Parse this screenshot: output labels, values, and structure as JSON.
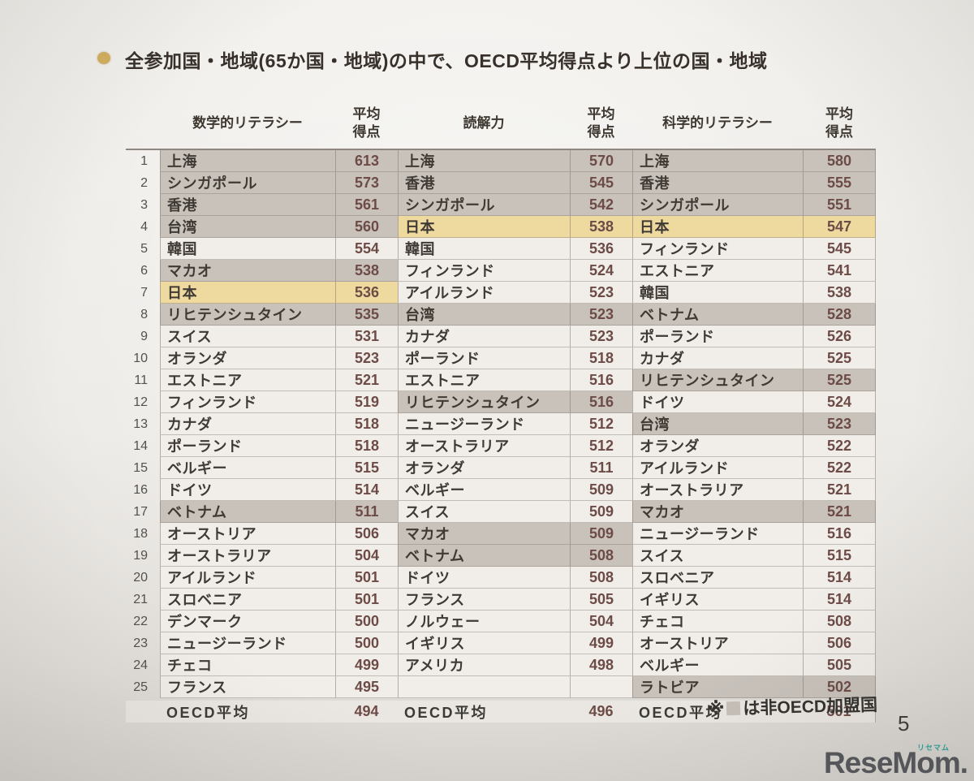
{
  "title": "全参加国・地域(65か国・地域)の中で、OECD平均得点より上位の国・地域",
  "page_number": "5",
  "note": {
    "prefix": "※",
    "suffix": "は非OECD加盟国"
  },
  "watermark": {
    "text": "ReseMom.",
    "ruby": "リセマム"
  },
  "colors": {
    "non_oecd_row": "#c8c2bb",
    "japan_row": "#eeda9f",
    "default_row": "#f1eeea",
    "oecd_avg_row": "#eae7e2",
    "score_text": "#6d4b46",
    "title_bullet": "#d2ae5c",
    "watermark_accent": "#2fa39a"
  },
  "chart_data": {
    "type": "table",
    "title": "全参加国・地域(65か国・地域)の中で、OECD平均得点より上位の国・地域",
    "columns": [
      "数学的リテラシー",
      "平均得点",
      "読解力",
      "平均得点",
      "科学的リテラシー",
      "平均得点"
    ],
    "legend_note": "※■は非OECD加盟国",
    "highlight_legend": {
      "non_oecd": "灰色行=非OECD加盟国",
      "japan": "黄色行=日本"
    },
    "rows": [
      {
        "rank": 1,
        "math": {
          "name": "上海",
          "score": 613,
          "hl": "non_oecd"
        },
        "reading": {
          "name": "上海",
          "score": 570,
          "hl": "non_oecd"
        },
        "science": {
          "name": "上海",
          "score": 580,
          "hl": "non_oecd"
        }
      },
      {
        "rank": 2,
        "math": {
          "name": "シンガポール",
          "score": 573,
          "hl": "non_oecd"
        },
        "reading": {
          "name": "香港",
          "score": 545,
          "hl": "non_oecd"
        },
        "science": {
          "name": "香港",
          "score": 555,
          "hl": "non_oecd"
        }
      },
      {
        "rank": 3,
        "math": {
          "name": "香港",
          "score": 561,
          "hl": "non_oecd"
        },
        "reading": {
          "name": "シンガポール",
          "score": 542,
          "hl": "non_oecd"
        },
        "science": {
          "name": "シンガポール",
          "score": 551,
          "hl": "non_oecd"
        }
      },
      {
        "rank": 4,
        "math": {
          "name": "台湾",
          "score": 560,
          "hl": "non_oecd"
        },
        "reading": {
          "name": "日本",
          "score": 538,
          "hl": "japan"
        },
        "science": {
          "name": "日本",
          "score": 547,
          "hl": "japan"
        }
      },
      {
        "rank": 5,
        "math": {
          "name": "韓国",
          "score": 554,
          "hl": null
        },
        "reading": {
          "name": "韓国",
          "score": 536,
          "hl": null
        },
        "science": {
          "name": "フィンランド",
          "score": 545,
          "hl": null
        }
      },
      {
        "rank": 6,
        "math": {
          "name": "マカオ",
          "score": 538,
          "hl": "non_oecd"
        },
        "reading": {
          "name": "フィンランド",
          "score": 524,
          "hl": null
        },
        "science": {
          "name": "エストニア",
          "score": 541,
          "hl": null
        }
      },
      {
        "rank": 7,
        "math": {
          "name": "日本",
          "score": 536,
          "hl": "japan"
        },
        "reading": {
          "name": "アイルランド",
          "score": 523,
          "hl": null
        },
        "science": {
          "name": "韓国",
          "score": 538,
          "hl": null
        }
      },
      {
        "rank": 8,
        "math": {
          "name": "リヒテンシュタイン",
          "score": 535,
          "hl": "non_oecd"
        },
        "reading": {
          "name": "台湾",
          "score": 523,
          "hl": "non_oecd"
        },
        "science": {
          "name": "ベトナム",
          "score": 528,
          "hl": "non_oecd"
        }
      },
      {
        "rank": 9,
        "math": {
          "name": "スイス",
          "score": 531,
          "hl": null
        },
        "reading": {
          "name": "カナダ",
          "score": 523,
          "hl": null
        },
        "science": {
          "name": "ポーランド",
          "score": 526,
          "hl": null
        }
      },
      {
        "rank": 10,
        "math": {
          "name": "オランダ",
          "score": 523,
          "hl": null
        },
        "reading": {
          "name": "ポーランド",
          "score": 518,
          "hl": null
        },
        "science": {
          "name": "カナダ",
          "score": 525,
          "hl": null
        }
      },
      {
        "rank": 11,
        "math": {
          "name": "エストニア",
          "score": 521,
          "hl": null
        },
        "reading": {
          "name": "エストニア",
          "score": 516,
          "hl": null
        },
        "science": {
          "name": "リヒテンシュタイン",
          "score": 525,
          "hl": "non_oecd"
        }
      },
      {
        "rank": 12,
        "math": {
          "name": "フィンランド",
          "score": 519,
          "hl": null
        },
        "reading": {
          "name": "リヒテンシュタイン",
          "score": 516,
          "hl": "non_oecd"
        },
        "science": {
          "name": "ドイツ",
          "score": 524,
          "hl": null
        }
      },
      {
        "rank": 13,
        "math": {
          "name": "カナダ",
          "score": 518,
          "hl": null
        },
        "reading": {
          "name": "ニュージーランド",
          "score": 512,
          "hl": null
        },
        "science": {
          "name": "台湾",
          "score": 523,
          "hl": "non_oecd"
        }
      },
      {
        "rank": 14,
        "math": {
          "name": "ポーランド",
          "score": 518,
          "hl": null
        },
        "reading": {
          "name": "オーストラリア",
          "score": 512,
          "hl": null
        },
        "science": {
          "name": "オランダ",
          "score": 522,
          "hl": null
        }
      },
      {
        "rank": 15,
        "math": {
          "name": "ベルギー",
          "score": 515,
          "hl": null
        },
        "reading": {
          "name": "オランダ",
          "score": 511,
          "hl": null
        },
        "science": {
          "name": "アイルランド",
          "score": 522,
          "hl": null
        }
      },
      {
        "rank": 16,
        "math": {
          "name": "ドイツ",
          "score": 514,
          "hl": null
        },
        "reading": {
          "name": "ベルギー",
          "score": 509,
          "hl": null
        },
        "science": {
          "name": "オーストラリア",
          "score": 521,
          "hl": null
        }
      },
      {
        "rank": 17,
        "math": {
          "name": "ベトナム",
          "score": 511,
          "hl": "non_oecd"
        },
        "reading": {
          "name": "スイス",
          "score": 509,
          "hl": null
        },
        "science": {
          "name": "マカオ",
          "score": 521,
          "hl": "non_oecd"
        }
      },
      {
        "rank": 18,
        "math": {
          "name": "オーストリア",
          "score": 506,
          "hl": null
        },
        "reading": {
          "name": "マカオ",
          "score": 509,
          "hl": "non_oecd"
        },
        "science": {
          "name": "ニュージーランド",
          "score": 516,
          "hl": null
        }
      },
      {
        "rank": 19,
        "math": {
          "name": "オーストラリア",
          "score": 504,
          "hl": null
        },
        "reading": {
          "name": "ベトナム",
          "score": 508,
          "hl": "non_oecd"
        },
        "science": {
          "name": "スイス",
          "score": 515,
          "hl": null
        }
      },
      {
        "rank": 20,
        "math": {
          "name": "アイルランド",
          "score": 501,
          "hl": null
        },
        "reading": {
          "name": "ドイツ",
          "score": 508,
          "hl": null
        },
        "science": {
          "name": "スロベニア",
          "score": 514,
          "hl": null
        }
      },
      {
        "rank": 21,
        "math": {
          "name": "スロベニア",
          "score": 501,
          "hl": null
        },
        "reading": {
          "name": "フランス",
          "score": 505,
          "hl": null
        },
        "science": {
          "name": "イギリス",
          "score": 514,
          "hl": null
        }
      },
      {
        "rank": 22,
        "math": {
          "name": "デンマーク",
          "score": 500,
          "hl": null
        },
        "reading": {
          "name": "ノルウェー",
          "score": 504,
          "hl": null
        },
        "science": {
          "name": "チェコ",
          "score": 508,
          "hl": null
        }
      },
      {
        "rank": 23,
        "math": {
          "name": "ニュージーランド",
          "score": 500,
          "hl": null
        },
        "reading": {
          "name": "イギリス",
          "score": 499,
          "hl": null
        },
        "science": {
          "name": "オーストリア",
          "score": 506,
          "hl": null
        }
      },
      {
        "rank": 24,
        "math": {
          "name": "チェコ",
          "score": 499,
          "hl": null
        },
        "reading": {
          "name": "アメリカ",
          "score": 498,
          "hl": null
        },
        "science": {
          "name": "ベルギー",
          "score": 505,
          "hl": null
        }
      },
      {
        "rank": 25,
        "math": {
          "name": "フランス",
          "score": 495,
          "hl": null
        },
        "reading": null,
        "science": {
          "name": "ラトビア",
          "score": 502,
          "hl": "non_oecd"
        }
      }
    ],
    "oecd_average": {
      "label": "OECD平均",
      "math": 494,
      "reading": 496,
      "science": 501
    }
  }
}
